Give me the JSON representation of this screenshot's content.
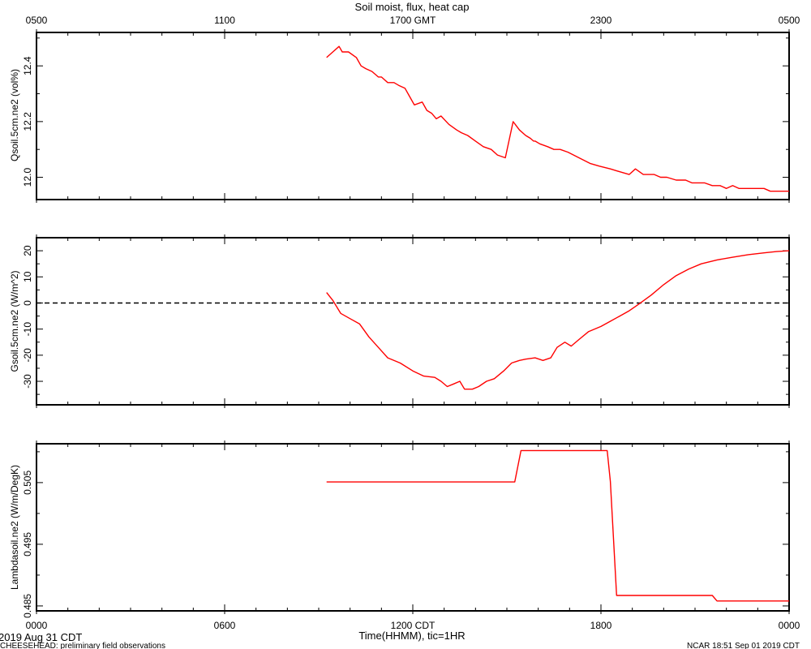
{
  "chart_data": {
    "type": "line",
    "title": "Soil moist, flux, heat cap",
    "top_axis": {
      "ticks": [
        {
          "t": 0,
          "label": "0500"
        },
        {
          "t": 6,
          "label": "1100"
        },
        {
          "t": 12,
          "label": "1700 GMT"
        },
        {
          "t": 18,
          "label": "2300"
        },
        {
          "t": 24,
          "label": "0500"
        }
      ]
    },
    "bottom_axis": {
      "ticks": [
        {
          "t": 0,
          "label": "0000"
        },
        {
          "t": 6,
          "label": "0600"
        },
        {
          "t": 12,
          "label": "1200 CDT"
        },
        {
          "t": 18,
          "label": "1800"
        },
        {
          "t": 24,
          "label": "0000"
        }
      ],
      "xlabel": "Time(HHMM), tic=1HR",
      "date_label": "2019 Aug 31 CDT"
    },
    "x_range_hours": [
      0,
      24
    ],
    "line_color": "#ff0000",
    "panels": [
      {
        "ylabel": "Qsoil.5cm.ne2 (vol%)",
        "ylim": [
          11.92,
          12.52
        ],
        "yticks": [
          12.0,
          12.2,
          12.4
        ],
        "ytick_labels": [
          "12.0",
          "12.2",
          "12.4"
        ],
        "zero_line": false,
        "series": [
          {
            "x": [
              9.25,
              9.45,
              9.65,
              9.75,
              9.95,
              10.2,
              10.35,
              10.5,
              10.7,
              10.9,
              11.0,
              11.2,
              11.4,
              11.55,
              11.75,
              11.9,
              12.05,
              12.3,
              12.45,
              12.6,
              12.75,
              12.9,
              13.15,
              13.4,
              13.55,
              13.75,
              14.0,
              14.25,
              14.5,
              14.7,
              14.95,
              15.2,
              15.4,
              15.6,
              15.75,
              15.85,
              15.9,
              16.05,
              16.3,
              16.5,
              16.7,
              16.95,
              17.3,
              17.65,
              17.95,
              18.3,
              18.6,
              18.9,
              19.1,
              19.35,
              19.5,
              19.7,
              19.9,
              20.1,
              20.4,
              20.7,
              20.9,
              21.1,
              21.3,
              21.55,
              21.8,
              22.0,
              22.2,
              22.4,
              22.6,
              22.8,
              23.0,
              23.2,
              23.4,
              23.7,
              24.0
            ],
            "y": [
              12.43,
              12.45,
              12.47,
              12.45,
              12.45,
              12.43,
              12.4,
              12.39,
              12.38,
              12.36,
              12.36,
              12.34,
              12.34,
              12.33,
              12.32,
              12.29,
              12.26,
              12.27,
              12.24,
              12.23,
              12.21,
              12.22,
              12.19,
              12.17,
              12.16,
              12.15,
              12.13,
              12.11,
              12.1,
              12.08,
              12.07,
              12.2,
              12.17,
              12.15,
              12.14,
              12.13,
              12.13,
              12.12,
              12.11,
              12.1,
              12.1,
              12.09,
              12.07,
              12.05,
              12.04,
              12.03,
              12.02,
              12.01,
              12.03,
              12.01,
              12.01,
              12.01,
              12.0,
              12.0,
              11.99,
              11.99,
              11.98,
              11.98,
              11.98,
              11.97,
              11.97,
              11.96,
              11.97,
              11.96,
              11.96,
              11.96,
              11.96,
              11.96,
              11.95,
              11.95,
              11.95
            ]
          }
        ]
      },
      {
        "ylabel": "Gsoil.5cm.ne2 (W/m^2)",
        "ylim": [
          -39,
          25
        ],
        "yticks": [
          -30,
          -20,
          -10,
          0,
          10,
          20
        ],
        "ytick_labels": [
          "-30",
          "-20",
          "-10",
          "0",
          "10",
          "20"
        ],
        "zero_line": true,
        "series": [
          {
            "x": [
              9.25,
              9.45,
              9.7,
              10.0,
              10.3,
              10.6,
              10.9,
              11.2,
              11.6,
              12.0,
              12.35,
              12.7,
              12.9,
              13.1,
              13.3,
              13.5,
              13.65,
              13.9,
              14.1,
              14.35,
              14.6,
              14.9,
              15.15,
              15.4,
              15.6,
              15.9,
              16.15,
              16.4,
              16.6,
              16.85,
              17.05,
              17.3,
              17.6,
              18.0,
              18.3,
              18.6,
              18.9,
              19.2,
              19.6,
              20.0,
              20.4,
              20.8,
              21.2,
              21.7,
              22.2,
              22.7,
              23.2,
              23.6,
              24.0
            ],
            "y": [
              4,
              1,
              -4,
              -6,
              -8,
              -13,
              -17,
              -21,
              -23,
              -26,
              -28,
              -28.5,
              -30,
              -32,
              -31,
              -30,
              -33,
              -33,
              -32,
              -30,
              -29,
              -26,
              -23,
              -22,
              -21.5,
              -21,
              -22,
              -21,
              -17,
              -15,
              -16.5,
              -14,
              -11,
              -9,
              -7,
              -5,
              -3,
              -0.5,
              3,
              7,
              10.5,
              13,
              15,
              16.5,
              17.5,
              18.5,
              19.2,
              19.7,
              20
            ]
          }
        ]
      },
      {
        "ylabel": "Lambdasoil.ne2 (W/m/DegK)",
        "ylim": [
          0.4842,
          0.5113
        ],
        "yticks": [
          0.485,
          0.495,
          0.505
        ],
        "ytick_labels": [
          "0.485",
          "0.495",
          "0.505"
        ],
        "zero_line": false,
        "series": [
          {
            "x": [
              9.25,
              15.25,
              15.45,
              18.2,
              18.3,
              18.5,
              21.55,
              21.7,
              24.0
            ],
            "y": [
              0.5051,
              0.5051,
              0.5102,
              0.5102,
              0.5052,
              0.4867,
              0.4867,
              0.4858,
              0.4858
            ]
          }
        ]
      }
    ]
  },
  "footer": {
    "left_note": "CHEESEHEAD: preliminary field observations",
    "right_note": "NCAR 18:51 Sep 01 2019 CDT"
  }
}
